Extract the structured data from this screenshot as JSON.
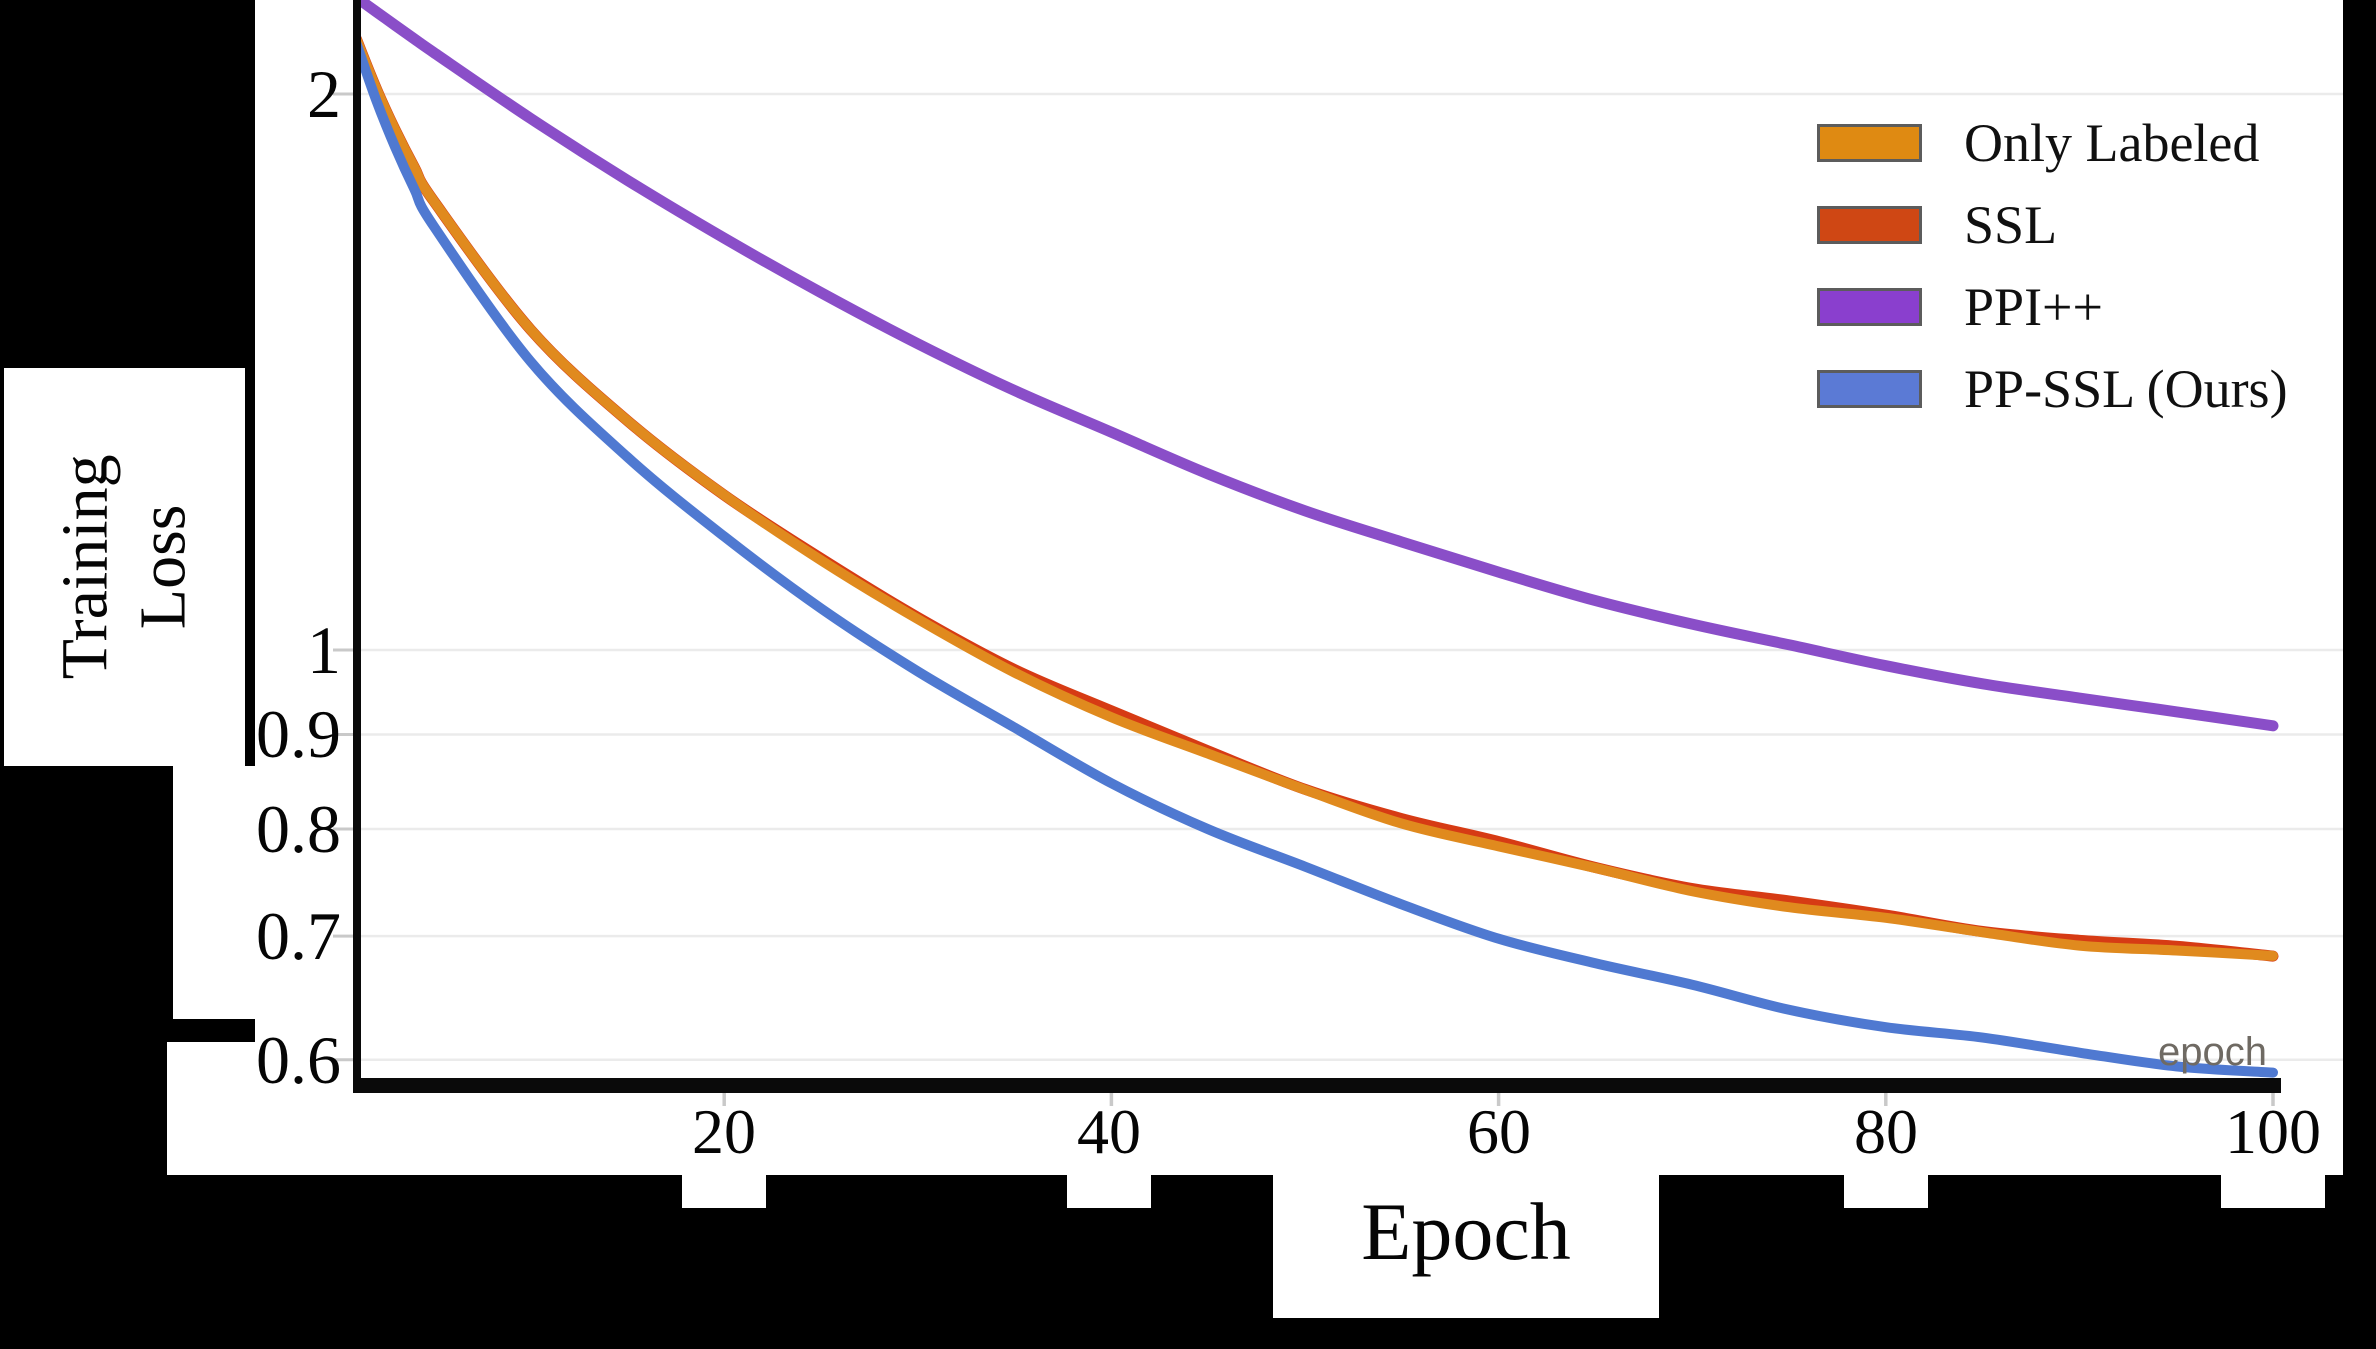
{
  "chart_data": {
    "type": "line",
    "title": "",
    "xlabel": "Epoch",
    "ylabel": "Training\nLoss",
    "yscale": "log",
    "xlim": [
      1,
      103
    ],
    "ylim": [
      0.58,
      2.25
    ],
    "grid": "horizontal",
    "legend_position": "upper right",
    "overlay_label": "epoch",
    "xticks": [
      {
        "label": "20",
        "value": 20
      },
      {
        "label": "40",
        "value": 40
      },
      {
        "label": "60",
        "value": 60
      },
      {
        "label": "80",
        "value": 80
      },
      {
        "label": "100",
        "value": 100
      }
    ],
    "yticks": [
      {
        "label": "2",
        "value": 2
      },
      {
        "label": "1",
        "value": 1
      },
      {
        "label": "0.9",
        "value": 0.9
      },
      {
        "label": "0.8",
        "value": 0.8
      },
      {
        "label": "0.7",
        "value": 0.7
      },
      {
        "label": "0.6",
        "value": 0.6
      }
    ],
    "epochs": [
      1,
      2,
      3,
      4,
      5,
      10,
      15,
      20,
      25,
      30,
      35,
      40,
      45,
      50,
      55,
      60,
      65,
      70,
      75,
      80,
      85,
      90,
      95,
      100
    ],
    "series": [
      {
        "name": "PPI++",
        "color": "#8A4EC8",
        "swatch_color": "#8A3FCE",
        "values": [
          2.256,
          2.217,
          2.179,
          2.142,
          2.106,
          1.94,
          1.796,
          1.671,
          1.561,
          1.466,
          1.382,
          1.31,
          1.246,
          1.191,
          1.143,
          1.101,
          1.065,
          1.033,
          1.005,
          0.981,
          0.96,
          0.941,
          0.925,
          0.911
        ]
      },
      {
        "name": "SSL",
        "color": "#D63B14",
        "swatch_color": "#CF4714",
        "values": [
          2.142,
          2.017,
          1.913,
          1.825,
          1.75,
          1.491,
          1.331,
          1.213,
          1.12,
          1.042,
          0.978,
          0.925,
          0.88,
          0.843,
          0.811,
          0.785,
          0.763,
          0.745,
          0.73,
          0.717,
          0.706,
          0.697,
          0.689,
          0.683
        ]
      },
      {
        "name": "Only Labeled",
        "color": "#E08A1E",
        "swatch_color": "#DF8A12",
        "values": [
          2.142,
          2.017,
          1.913,
          1.825,
          1.75,
          1.491,
          1.331,
          1.213,
          1.118,
          1.038,
          0.974,
          0.921,
          0.876,
          0.84,
          0.808,
          0.782,
          0.76,
          0.742,
          0.727,
          0.714,
          0.703,
          0.694,
          0.687,
          0.681
        ]
      },
      {
        "name": "PP-SSL (Ours)",
        "color": "#4F79D1",
        "swatch_color": "#5B7AD5",
        "values": [
          2.131,
          1.988,
          1.872,
          1.776,
          1.696,
          1.433,
          1.272,
          1.152,
          1.054,
          0.973,
          0.906,
          0.849,
          0.801,
          0.761,
          0.728,
          0.7,
          0.676,
          0.657,
          0.64,
          0.626,
          0.615,
          0.605,
          0.597,
          0.59
        ]
      }
    ],
    "legend_order": [
      "Only Labeled",
      "SSL",
      "PPI++",
      "PP-SSL (Ours)"
    ],
    "colors": {
      "background": "#000000",
      "plot_background": "#ffffff",
      "gridline": "#ebebeb",
      "tick_mark": "#c9c9c9",
      "axis": "#0a0a0a",
      "text": "#050505",
      "overlay_label_color": "#6f6a63"
    }
  }
}
